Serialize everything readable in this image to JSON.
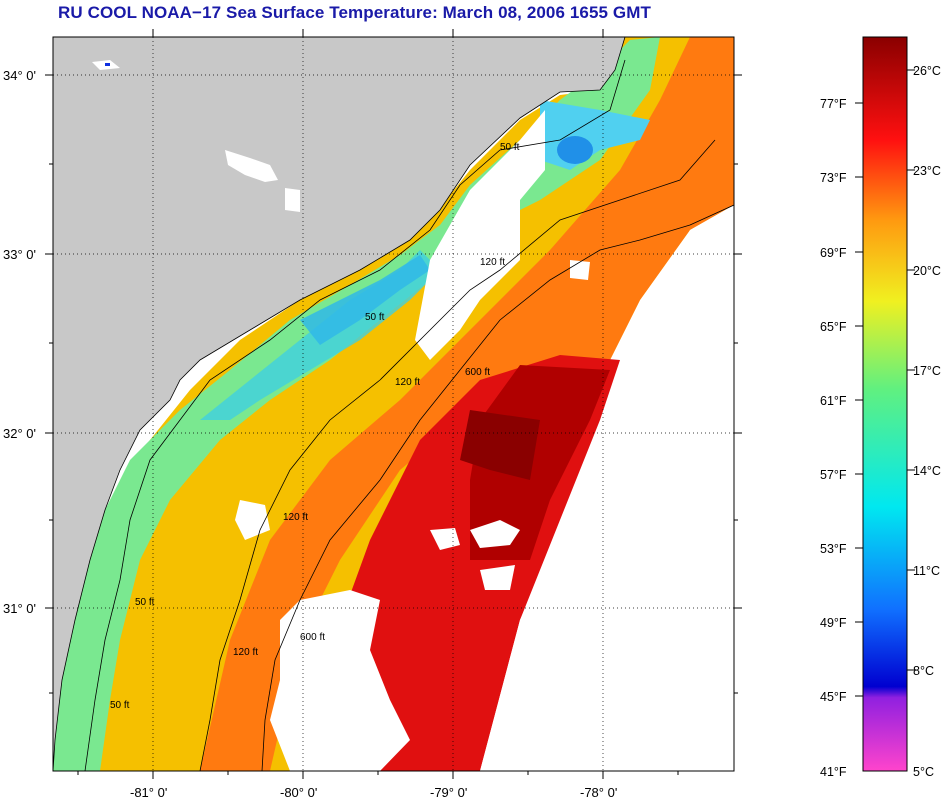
{
  "title": "RU COOL  NOAA−17  Sea Surface Temperature:  March 08, 2006 1655 GMT",
  "latitude_labels": [
    "34° 0'",
    "33° 0'",
    "32° 0'",
    "31° 0'"
  ],
  "longitude_labels": [
    "-81° 0'",
    "-80° 0'",
    "-79° 0'",
    "-78° 0'"
  ],
  "colorbar": {
    "fahrenheit_labels": [
      "77°F",
      "73°F",
      "69°F",
      "65°F",
      "61°F",
      "57°F",
      "53°F",
      "49°F",
      "45°F",
      "41°F"
    ],
    "celsius_labels": [
      "26°C",
      "23°C",
      "20°C",
      "17°C",
      "14°C",
      "11°C",
      "8°C",
      "5°C"
    ],
    "range_c": [
      5,
      27
    ]
  },
  "contours": {
    "c50": "50 ft",
    "c120": "120 ft",
    "c600": "600 ft"
  },
  "colors": {
    "land": "#c8c8c8",
    "title": "#1a1aa8",
    "no_data": "#ffffff"
  }
}
